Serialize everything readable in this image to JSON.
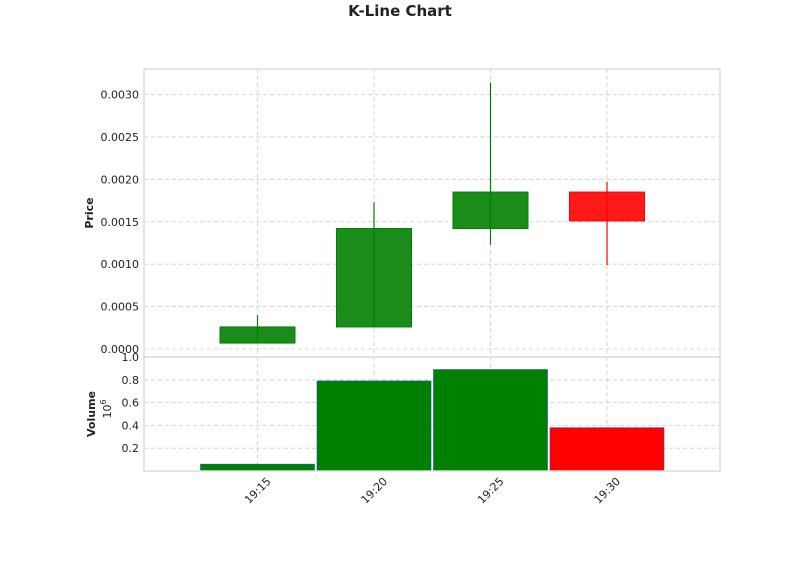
{
  "chart_data": {
    "type": "candlestick",
    "title": "K-Line Chart",
    "categories": [
      "19:15",
      "19:20",
      "19:25",
      "19:30"
    ],
    "candles": [
      {
        "time": "19:15",
        "open": 7e-05,
        "high": 0.0004,
        "low": 7e-05,
        "close": 0.00026,
        "direction": "up"
      },
      {
        "time": "19:20",
        "open": 0.00026,
        "high": 0.00173,
        "low": 0.00026,
        "close": 0.00142,
        "direction": "up"
      },
      {
        "time": "19:25",
        "open": 0.00142,
        "high": 0.00314,
        "low": 0.00123,
        "close": 0.00185,
        "direction": "up"
      },
      {
        "time": "19:30",
        "open": 0.00185,
        "high": 0.00197,
        "low": 0.00099,
        "close": 0.00151,
        "direction": "down"
      }
    ],
    "price_panel": {
      "ylabel": "Price",
      "ylim": [
        0.0,
        0.00327
      ],
      "ticks": [
        0.0,
        0.0005,
        0.001,
        0.0015,
        0.002,
        0.0025,
        0.003
      ],
      "tick_labels": [
        "0.0000",
        "0.0005",
        "0.0010",
        "0.0015",
        "0.0020",
        "0.0025",
        "0.0030"
      ]
    },
    "volume_panel": {
      "ylabel": "Volume",
      "scale_label": "10",
      "scale_exponent": "6",
      "ylim": [
        0.0,
        1.0
      ],
      "ticks": [
        0.2,
        0.4,
        0.6,
        0.8,
        1.0
      ],
      "tick_labels": [
        "0.2",
        "0.4",
        "0.6",
        "0.8",
        "1.0"
      ],
      "values": [
        0.06,
        0.79,
        0.89,
        0.38
      ]
    },
    "grid": true,
    "colors": {
      "up": "#008000",
      "down": "#ff0000"
    }
  }
}
